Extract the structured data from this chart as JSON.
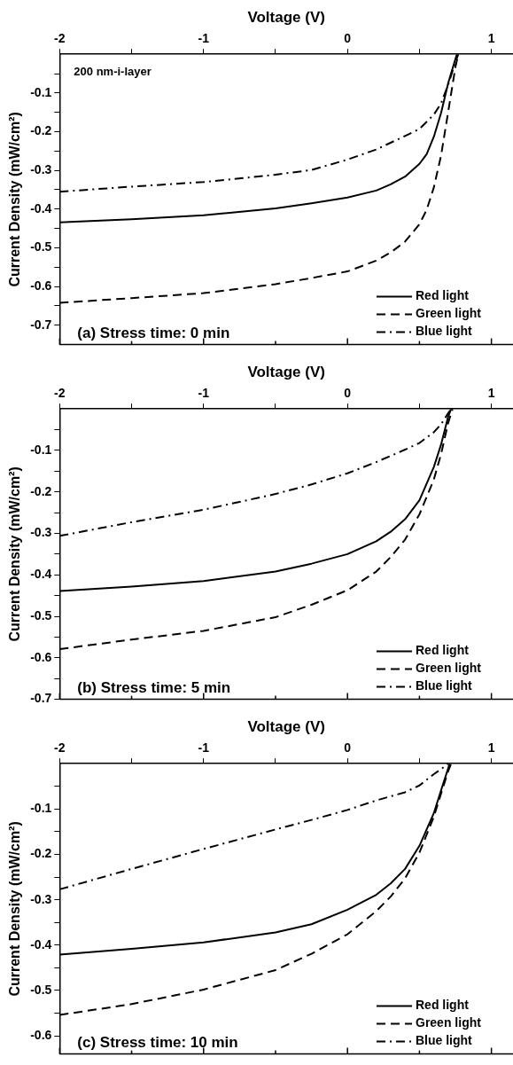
{
  "chart_data": [
    {
      "type": "line",
      "xlabel": "Voltage (V)",
      "ylabel": "Current Density (mW/cm²)",
      "annotations": [
        "200 nm-i-layer",
        "(a) Stress time: 0 min"
      ],
      "legend": "bottom right",
      "xlim": [
        -2,
        1.15
      ],
      "xticks": [
        -2,
        {
          "value": -1.5,
          "label": null
        },
        -1,
        {
          "value": -0.5,
          "label": null
        },
        0,
        {
          "value": 0.5,
          "label": null
        },
        1
      ],
      "ylim": [
        -0.75,
        0
      ],
      "yticks": [
        {
          "value": -0.05,
          "label": null
        },
        -0.1,
        {
          "value": -0.15,
          "label": null
        },
        -0.2,
        {
          "value": -0.25,
          "label": null
        },
        -0.3,
        {
          "value": -0.35,
          "label": null
        },
        -0.4,
        {
          "value": -0.45,
          "label": null
        },
        -0.5,
        {
          "value": -0.55,
          "label": null
        },
        -0.6,
        {
          "value": -0.65,
          "label": null
        },
        -0.7
      ],
      "series": [
        {
          "name": "Red light",
          "color": "#000000",
          "line_style": "solid",
          "x": [
            -2,
            -1.5,
            -1,
            -0.5,
            -0.25,
            0,
            0.2,
            0.3,
            0.4,
            0.5,
            0.55,
            0.6,
            0.65,
            0.7,
            0.75,
            0.76
          ],
          "values": [
            -0.434,
            -0.426,
            -0.416,
            -0.398,
            -0.385,
            -0.37,
            -0.352,
            -0.336,
            -0.316,
            -0.283,
            -0.258,
            -0.213,
            -0.152,
            -0.074,
            -0.012,
            0
          ]
        },
        {
          "name": "Green light",
          "color": "#000000",
          "line_style": "dashed",
          "x": [
            -2,
            -1.5,
            -1,
            -0.5,
            -0.25,
            0,
            0.2,
            0.3,
            0.4,
            0.5,
            0.55,
            0.6,
            0.65,
            0.7,
            0.75,
            0.77
          ],
          "values": [
            -0.642,
            -0.63,
            -0.617,
            -0.594,
            -0.578,
            -0.561,
            -0.533,
            -0.512,
            -0.484,
            -0.439,
            -0.402,
            -0.344,
            -0.262,
            -0.148,
            -0.033,
            0
          ]
        },
        {
          "name": "Blue light",
          "color": "#000000",
          "line_style": "dashdot",
          "x": [
            -2,
            -1.5,
            -1,
            -0.5,
            -0.25,
            0,
            0.2,
            0.4,
            0.5,
            0.6,
            0.65,
            0.7,
            0.75,
            0.77
          ],
          "values": [
            -0.355,
            -0.342,
            -0.33,
            -0.311,
            -0.299,
            -0.272,
            -0.246,
            -0.211,
            -0.193,
            -0.156,
            -0.127,
            -0.078,
            -0.02,
            0
          ]
        }
      ]
    },
    {
      "type": "line",
      "xlabel": "Voltage (V)",
      "ylabel": "Current Density (mW/cm²)",
      "annotations": [
        "(b) Stress time: 5 min"
      ],
      "legend": "bottom right",
      "xlim": [
        -2,
        1.15
      ],
      "xticks": [
        -2,
        {
          "value": -1.5,
          "label": null
        },
        -1,
        {
          "value": -0.5,
          "label": null
        },
        0,
        {
          "value": 0.5,
          "label": null
        },
        1
      ],
      "ylim": [
        -0.7,
        0
      ],
      "yticks": [
        {
          "value": -0.05,
          "label": null
        },
        -0.1,
        {
          "value": -0.15,
          "label": null
        },
        -0.2,
        {
          "value": -0.25,
          "label": null
        },
        -0.3,
        {
          "value": -0.35,
          "label": null
        },
        -0.4,
        {
          "value": -0.45,
          "label": null
        },
        -0.5,
        {
          "value": -0.55,
          "label": null
        },
        -0.6,
        {
          "value": -0.65,
          "label": null
        },
        -0.7
      ],
      "series": [
        {
          "name": "Red light",
          "color": "#000000",
          "line_style": "solid",
          "x": [
            -2,
            -1.5,
            -1,
            -0.5,
            -0.25,
            0,
            0.2,
            0.3,
            0.4,
            0.5,
            0.6,
            0.65,
            0.7,
            0.72
          ],
          "values": [
            -0.439,
            -0.428,
            -0.415,
            -0.392,
            -0.373,
            -0.35,
            -0.319,
            -0.296,
            -0.266,
            -0.22,
            -0.14,
            -0.086,
            -0.018,
            0
          ]
        },
        {
          "name": "Green light",
          "color": "#000000",
          "line_style": "dashed",
          "x": [
            -2,
            -1.5,
            -1,
            -0.5,
            -0.25,
            0,
            0.2,
            0.3,
            0.4,
            0.5,
            0.6,
            0.65,
            0.7,
            0.73
          ],
          "values": [
            -0.579,
            -0.556,
            -0.535,
            -0.502,
            -0.472,
            -0.437,
            -0.392,
            -0.357,
            -0.315,
            -0.254,
            -0.17,
            -0.109,
            -0.033,
            0
          ]
        },
        {
          "name": "Blue light",
          "color": "#000000",
          "line_style": "dashdot",
          "x": [
            -2,
            -1.5,
            -1,
            -0.5,
            -0.25,
            0,
            0.2,
            0.4,
            0.5,
            0.6,
            0.65,
            0.7,
            0.72
          ],
          "values": [
            -0.306,
            -0.273,
            -0.243,
            -0.205,
            -0.182,
            -0.155,
            -0.128,
            -0.098,
            -0.082,
            -0.056,
            -0.037,
            -0.01,
            0
          ]
        }
      ]
    },
    {
      "type": "line",
      "xlabel": "Voltage (V)",
      "ylabel": "Current Density (mW/cm²)",
      "annotations": [
        "(c) Stress time: 10 min"
      ],
      "legend": "bottom right",
      "xlim": [
        -2,
        1.15
      ],
      "xticks": [
        -2,
        {
          "value": -1.5,
          "label": null
        },
        -1,
        {
          "value": -0.5,
          "label": null
        },
        0,
        {
          "value": 0.5,
          "label": null
        },
        1
      ],
      "ylim": [
        -0.64,
        0
      ],
      "yticks": [
        {
          "value": -0.05,
          "label": null
        },
        -0.1,
        {
          "value": -0.15,
          "label": null
        },
        -0.2,
        {
          "value": -0.25,
          "label": null
        },
        -0.3,
        {
          "value": -0.35,
          "label": null
        },
        -0.4,
        {
          "value": -0.45,
          "label": null
        },
        -0.5,
        {
          "value": -0.55,
          "label": null
        },
        -0.6
      ],
      "series": [
        {
          "name": "Red light",
          "color": "#000000",
          "line_style": "solid",
          "x": [
            -2,
            -1.5,
            -1,
            -0.5,
            -0.25,
            0,
            0.2,
            0.3,
            0.4,
            0.5,
            0.6,
            0.65,
            0.71
          ],
          "values": [
            -0.421,
            -0.408,
            -0.394,
            -0.372,
            -0.354,
            -0.322,
            -0.289,
            -0.264,
            -0.232,
            -0.181,
            -0.109,
            -0.059,
            0
          ]
        },
        {
          "name": "Green light",
          "color": "#000000",
          "line_style": "dashed",
          "x": [
            -2,
            -1.5,
            -1,
            -0.5,
            -0.25,
            0,
            0.2,
            0.3,
            0.4,
            0.5,
            0.6,
            0.65,
            0.7,
            0.72
          ],
          "values": [
            -0.554,
            -0.53,
            -0.498,
            -0.455,
            -0.419,
            -0.376,
            -0.325,
            -0.293,
            -0.253,
            -0.196,
            -0.117,
            -0.066,
            -0.016,
            0
          ]
        },
        {
          "name": "Blue light",
          "color": "#000000",
          "line_style": "dashdot",
          "x": [
            -2,
            -1.5,
            -1,
            -0.5,
            -0.25,
            0,
            0.2,
            0.4,
            0.5,
            0.6,
            0.65,
            0.7
          ],
          "values": [
            -0.277,
            -0.232,
            -0.188,
            -0.145,
            -0.124,
            -0.102,
            -0.081,
            -0.063,
            -0.048,
            -0.023,
            -0.012,
            0
          ]
        }
      ]
    }
  ]
}
